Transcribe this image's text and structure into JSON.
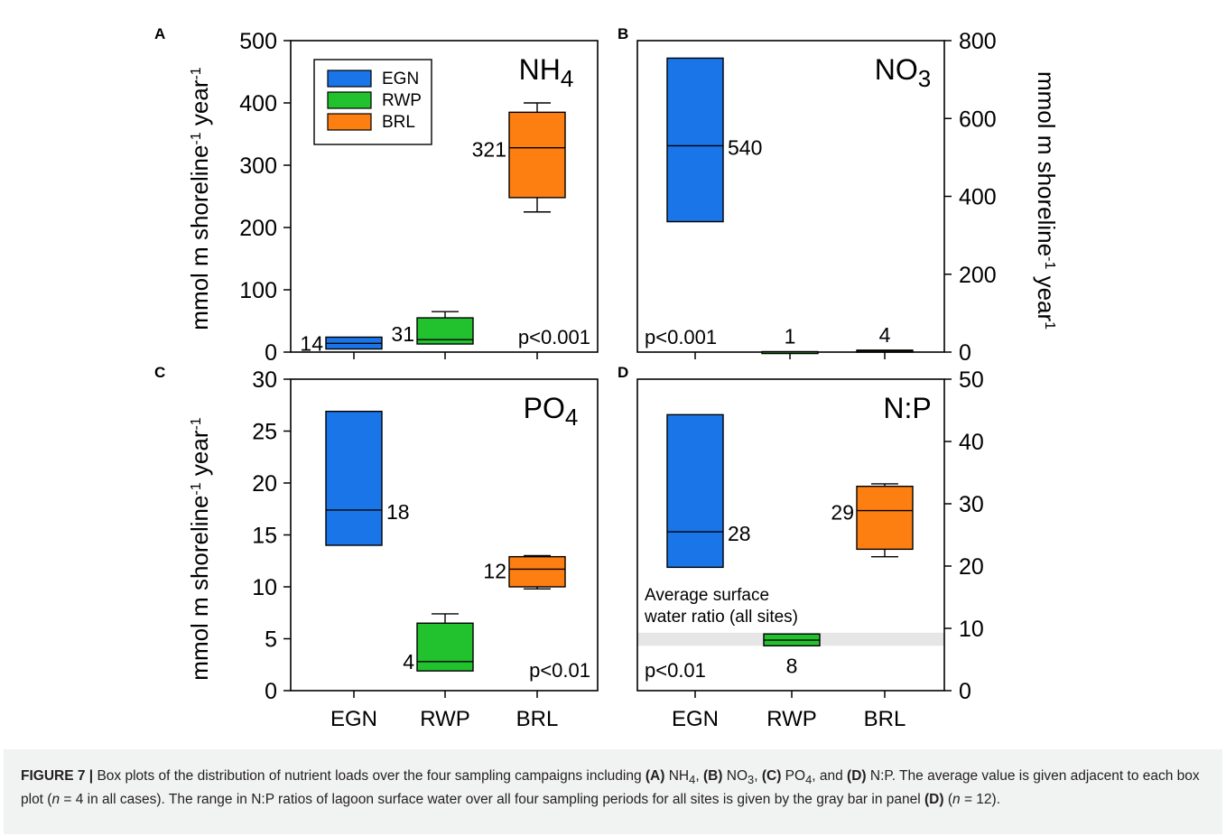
{
  "chart_data": [
    {
      "panel": "A",
      "type": "box",
      "title": "NH4",
      "title_main": "NH",
      "title_sub": "4",
      "categories": [
        "EGN",
        "RWP",
        "BRL"
      ],
      "ylabel": "mmol m shoreline-1 year-1",
      "ylim": [
        0,
        500
      ],
      "yticks": [
        0,
        100,
        200,
        300,
        400,
        500
      ],
      "pvalue": "p<0.001",
      "legend": {
        "placement": "top-left",
        "entries": [
          "EGN",
          "RWP",
          "BRL"
        ]
      },
      "boxes": [
        {
          "category": "EGN",
          "q1": 5,
          "median": 14,
          "q3": 24,
          "whisker_low": null,
          "whisker_high": null,
          "label": "14"
        },
        {
          "category": "RWP",
          "q1": 13,
          "median": 20,
          "q3": 55,
          "whisker_low": 13,
          "whisker_high": 65,
          "label": "31"
        },
        {
          "category": "BRL",
          "q1": 248,
          "median": 328,
          "q3": 385,
          "whisker_low": 225,
          "whisker_high": 400,
          "label": "321"
        }
      ]
    },
    {
      "panel": "B",
      "type": "box",
      "title": "NO3",
      "title_main": "NO",
      "title_sub": "3",
      "categories": [
        "EGN",
        "RWP",
        "BRL"
      ],
      "ylabel": "mmol m shoreline-1 year-1",
      "ylabel_side": "right",
      "ylim": [
        0,
        800
      ],
      "yticks": [
        0,
        200,
        400,
        600,
        800
      ],
      "pvalue": "p<0.001",
      "boxes": [
        {
          "category": "EGN",
          "q1": 335,
          "median": 530,
          "q3": 755,
          "whisker_low": null,
          "whisker_high": null,
          "label": "540"
        },
        {
          "category": "RWP",
          "q1": 0,
          "median": 1,
          "q3": 1,
          "whisker_low": null,
          "whisker_high": null,
          "label": "1"
        },
        {
          "category": "BRL",
          "q1": 0,
          "median": 3,
          "q3": 5,
          "whisker_low": null,
          "whisker_high": null,
          "label": "4"
        }
      ]
    },
    {
      "panel": "C",
      "type": "box",
      "title": "PO4",
      "title_main": "PO",
      "title_sub": "4",
      "categories": [
        "EGN",
        "RWP",
        "BRL"
      ],
      "ylabel": "mmol m shoreline-1 year-1",
      "ylim": [
        0,
        30
      ],
      "yticks": [
        0,
        5,
        10,
        15,
        20,
        25,
        30
      ],
      "pvalue": "p<0.01",
      "boxes": [
        {
          "category": "EGN",
          "q1": 14,
          "median": 17.4,
          "q3": 26.9,
          "whisker_low": null,
          "whisker_high": null,
          "label": "18"
        },
        {
          "category": "RWP",
          "q1": 1.9,
          "median": 2.8,
          "q3": 6.5,
          "whisker_low": 1.9,
          "whisker_high": 7.4,
          "label": "4"
        },
        {
          "category": "BRL",
          "q1": 10,
          "median": 11.7,
          "q3": 12.9,
          "whisker_low": 9.8,
          "whisker_high": 13,
          "label": "12"
        }
      ]
    },
    {
      "panel": "D",
      "type": "box",
      "title": "N:P",
      "categories": [
        "EGN",
        "RWP",
        "BRL"
      ],
      "ylim": [
        0,
        50
      ],
      "yticks": [
        0,
        10,
        20,
        30,
        40,
        50
      ],
      "pvalue": "p<0.01",
      "reference_band": {
        "low": 7.2,
        "high": 9.3,
        "label_line1": "Average surface",
        "label_line2": "water ratio (all sites)"
      },
      "boxes": [
        {
          "category": "EGN",
          "q1": 19.8,
          "median": 25.5,
          "q3": 44.3,
          "whisker_low": null,
          "whisker_high": null,
          "label": "28"
        },
        {
          "category": "RWP",
          "q1": 7.2,
          "median": 8.1,
          "q3": 9.1,
          "whisker_low": null,
          "whisker_high": null,
          "label": "8"
        },
        {
          "category": "BRL",
          "q1": 22.7,
          "median": 28.9,
          "q3": 32.8,
          "whisker_low": 21.5,
          "whisker_high": 33.2,
          "label": "29"
        }
      ]
    }
  ],
  "colors": {
    "EGN": "#1a75e8",
    "RWP": "#22c22e",
    "BRL": "#fd7f12",
    "band": "#e6e6e6",
    "caption_bg": "#f1f2f2"
  },
  "axis_labels": {
    "ylabel_main": "mmol m shoreline",
    "ylabel_sup1": "-1",
    "ylabel_mid": " year",
    "ylabel_sup2": "-1",
    "ylabel_right_sup2": "1"
  },
  "caption": {
    "lead": "FIGURE 7 |",
    "t1": " Box plots of the distribution of nutrient loads over the four sampling campaigns including ",
    "a": "(A)",
    "a_main": " NH",
    "a_sub": "4",
    "t2": ", ",
    "b": "(B)",
    "b_main": " NO",
    "b_sub": "3",
    "t3": ", ",
    "c": "(C)",
    "c_main": " PO",
    "c_sub": "4",
    "t4": ", and ",
    "d": "(D)",
    "t5": " N:P. The average value is given adjacent to each box plot (",
    "n1": "n",
    "t6": " = 4 in all cases). The range in N:P ratios of lagoon surface water over all four sampling periods for all sites is given by the gray bar in panel ",
    "d2": "(D)",
    "t7": " (",
    "n2": "n",
    "t8": " = 12)."
  }
}
